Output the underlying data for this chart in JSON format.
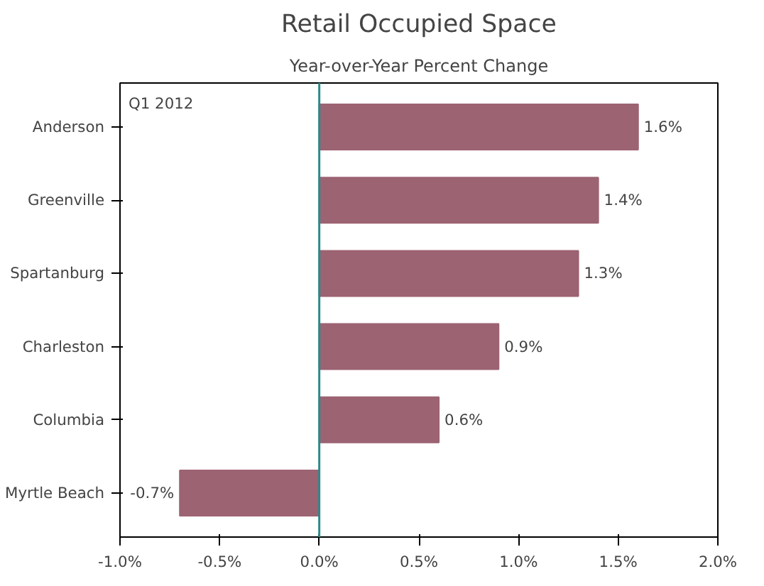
{
  "chart_data": {
    "type": "bar",
    "orientation": "horizontal",
    "title": "Retail Occupied Space",
    "subtitle": "Year-over-Year Percent Change",
    "categories": [
      "Anderson",
      "Greenville",
      "Spartanburg",
      "Charleston",
      "Columbia",
      "Myrtle Beach"
    ],
    "values": [
      1.6,
      1.4,
      1.3,
      0.9,
      0.6,
      -0.7
    ],
    "color": "#9c6373",
    "value_labels": [
      "1.6%",
      "1.4%",
      "1.3%",
      "0.9%",
      "0.6%",
      "-0.7%"
    ],
    "xlim": [
      -1.0,
      2.0
    ],
    "xticks": [
      {
        "value": -1.0,
        "label": "-1.0%"
      },
      {
        "value": -0.5,
        "label": "-0.5%"
      },
      {
        "value": 0,
        "label": "0.0%"
      },
      {
        "value": 0.5,
        "label": "0.5%"
      },
      {
        "value": 1.0,
        "label": "1.0%"
      },
      {
        "value": 1.5,
        "label": "1.5%"
      },
      {
        "value": 2.0,
        "label": "2.0%"
      }
    ],
    "ref_lines": [
      {
        "axis": "x",
        "value": 0,
        "color": "#2a8a8a"
      }
    ],
    "annotations": [
      "Q1 2012"
    ],
    "grid": false
  }
}
